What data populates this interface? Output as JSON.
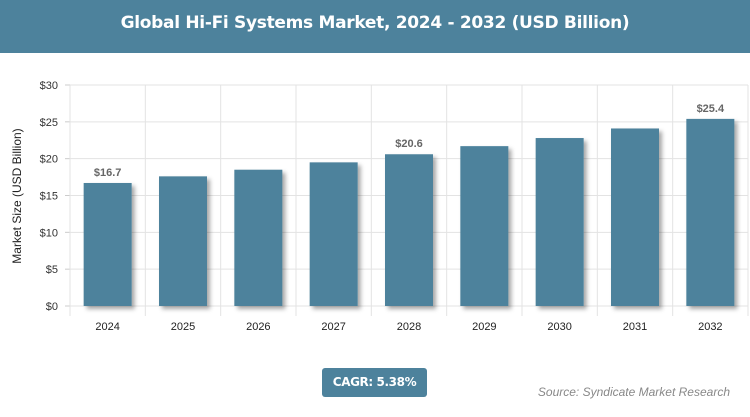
{
  "chart_data": {
    "type": "bar",
    "title": "Global Hi-Fi Systems Market, 2024 - 2032 (USD Billion)",
    "xlabel": "",
    "ylabel": "Market Size (USD Billion)",
    "categories": [
      "2024",
      "2025",
      "2026",
      "2027",
      "2028",
      "2029",
      "2030",
      "2031",
      "2032"
    ],
    "values": [
      16.7,
      17.6,
      18.5,
      19.5,
      20.6,
      21.7,
      22.8,
      24.1,
      25.4
    ],
    "data_labels": {
      "0": "$16.7",
      "4": "$20.6",
      "8": "$25.4"
    },
    "yticks": [
      "$0",
      "$5",
      "$10",
      "$15",
      "$20",
      "$25",
      "$30"
    ],
    "ylim": [
      0,
      30
    ],
    "grid": true,
    "bar_color": "#4d829c"
  },
  "cagr_label": "CAGR: 5.38%",
  "source": "Source: Syndicate Market Research"
}
